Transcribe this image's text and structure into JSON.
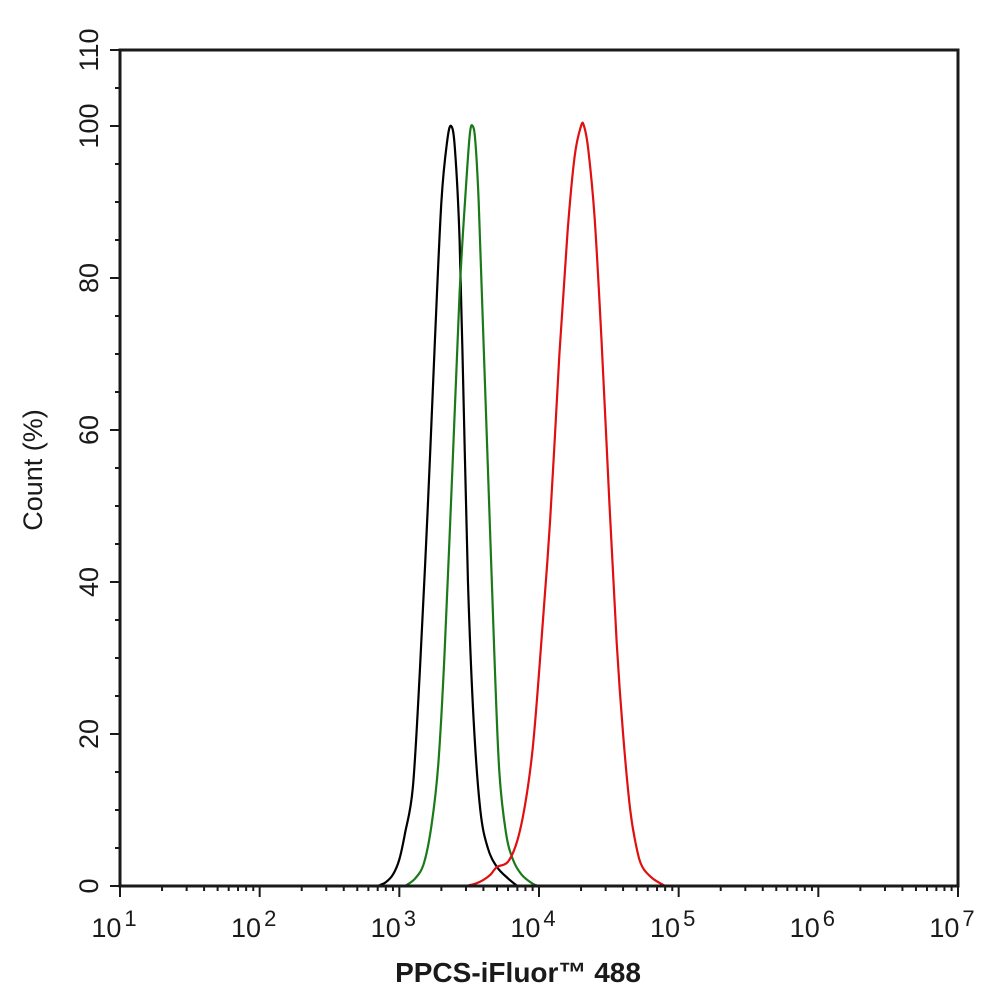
{
  "chart_data": {
    "type": "line",
    "xlabel": "PPCS-iFluor™ 488",
    "ylabel": "Count  (%)",
    "x_scale": "log",
    "xlim": [
      10,
      10000000
    ],
    "ylim": [
      0,
      110
    ],
    "x_ticks": [
      {
        "value": 10,
        "base": "10",
        "exp": "1"
      },
      {
        "value": 100,
        "base": "10",
        "exp": "2"
      },
      {
        "value": 1000,
        "base": "10",
        "exp": "3"
      },
      {
        "value": 10000,
        "base": "10",
        "exp": "4"
      },
      {
        "value": 100000,
        "base": "10",
        "exp": "5"
      },
      {
        "value": 1000000,
        "base": "10",
        "exp": "6"
      },
      {
        "value": 10000000,
        "base": "10",
        "exp": "7"
      }
    ],
    "y_ticks": [
      "0",
      "20",
      "40",
      "60",
      "80",
      "100",
      "110"
    ],
    "grid": false,
    "series": [
      {
        "color": "#000000",
        "points": [
          [
            700,
            0
          ],
          [
            800,
            0.5
          ],
          [
            900,
            1.5
          ],
          [
            1000,
            3.5
          ],
          [
            1100,
            7
          ],
          [
            1250,
            13
          ],
          [
            1400,
            28
          ],
          [
            1600,
            50
          ],
          [
            1800,
            72
          ],
          [
            2000,
            90
          ],
          [
            2200,
            98
          ],
          [
            2350,
            100
          ],
          [
            2500,
            97
          ],
          [
            2700,
            85
          ],
          [
            2900,
            62
          ],
          [
            3100,
            40
          ],
          [
            3400,
            22
          ],
          [
            3800,
            10
          ],
          [
            4300,
            5
          ],
          [
            5000,
            2.5
          ],
          [
            6000,
            1
          ],
          [
            7000,
            0
          ]
        ]
      },
      {
        "color": "#1a7a1a",
        "points": [
          [
            1100,
            0
          ],
          [
            1300,
            1
          ],
          [
            1500,
            3
          ],
          [
            1700,
            8
          ],
          [
            1900,
            16
          ],
          [
            2100,
            30
          ],
          [
            2400,
            55
          ],
          [
            2700,
            78
          ],
          [
            3000,
            92
          ],
          [
            3200,
            99
          ],
          [
            3350,
            100
          ],
          [
            3500,
            98
          ],
          [
            3700,
            90
          ],
          [
            4000,
            72
          ],
          [
            4400,
            50
          ],
          [
            4800,
            30
          ],
          [
            5200,
            15
          ],
          [
            5800,
            7
          ],
          [
            6500,
            3.5
          ],
          [
            7500,
            1.5
          ],
          [
            9000,
            0.3
          ],
          [
            10000,
            0
          ]
        ]
      },
      {
        "color": "#e01010",
        "points": [
          [
            3000,
            0
          ],
          [
            3500,
            0.3
          ],
          [
            4000,
            0.8
          ],
          [
            4500,
            1.5
          ],
          [
            5000,
            2.5
          ],
          [
            6000,
            3.2
          ],
          [
            7000,
            6
          ],
          [
            8000,
            11
          ],
          [
            9000,
            18
          ],
          [
            10000,
            28
          ],
          [
            12000,
            48
          ],
          [
            14000,
            70
          ],
          [
            16000,
            86
          ],
          [
            18000,
            96
          ],
          [
            20000,
            100
          ],
          [
            21000,
            100
          ],
          [
            22500,
            97
          ],
          [
            25000,
            88
          ],
          [
            28000,
            72
          ],
          [
            32000,
            50
          ],
          [
            36000,
            32
          ],
          [
            40000,
            20
          ],
          [
            45000,
            10
          ],
          [
            50000,
            5
          ],
          [
            55000,
            2.5
          ],
          [
            65000,
            1
          ],
          [
            80000,
            0
          ]
        ]
      }
    ]
  }
}
